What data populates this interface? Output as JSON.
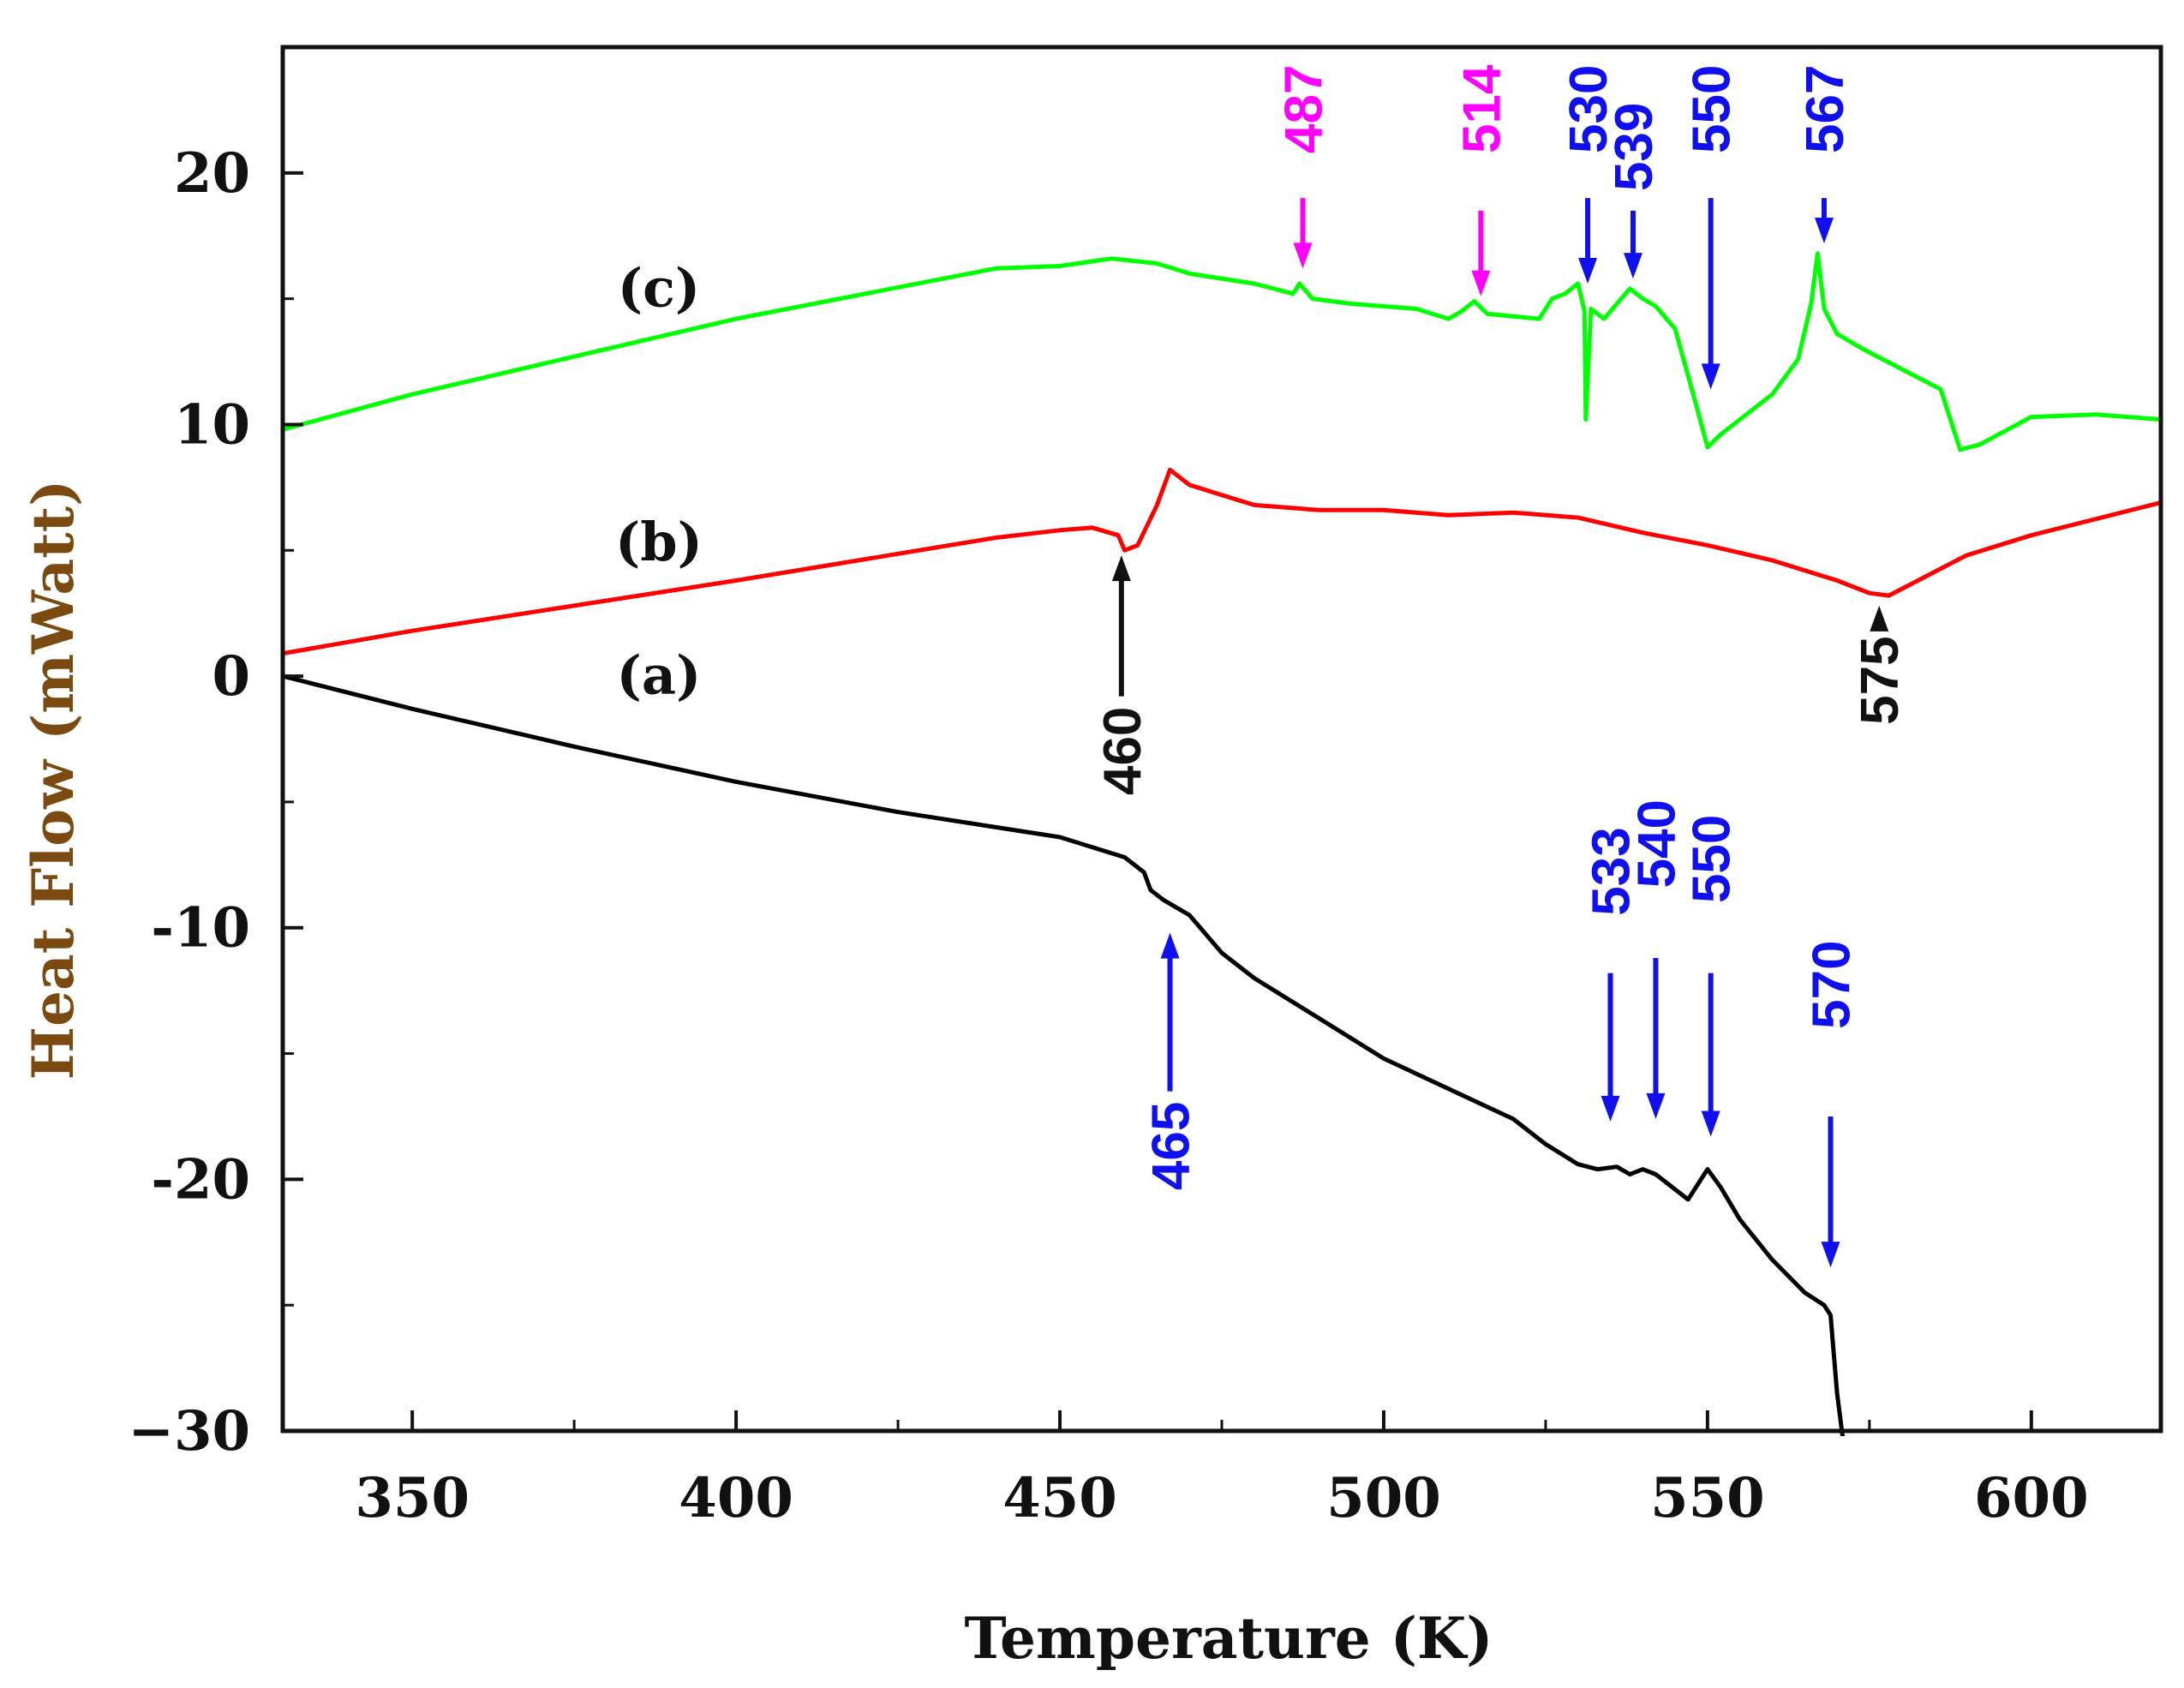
{
  "chart_data": {
    "type": "line",
    "title": "",
    "xlabel": "Temperature (K)",
    "ylabel": "Heat Flow (mWatt)",
    "xlim": [
      330,
      620
    ],
    "ylim": [
      -30,
      25
    ],
    "xticks": [
      350,
      400,
      450,
      500,
      550,
      600
    ],
    "xtick_labels": [
      "350",
      "400",
      "450",
      "500",
      "550",
      "600"
    ],
    "yticks": [
      -30,
      -20,
      -10,
      0,
      10,
      20
    ],
    "ytick_labels": [
      "−30",
      "-20",
      "-10",
      "0",
      "10",
      "20"
    ],
    "grid": false,
    "colors": {
      "a": "#000000",
      "b": "#ff0000",
      "c": "#00ff00",
      "blue": "#1010ee",
      "magenta": "#ff00ff",
      "black": "#111111",
      "ylabel": "#7a4a10"
    },
    "series": [
      {
        "name": "(a)",
        "key": "a",
        "x": [
          330,
          350,
          375,
          400,
          425,
          450,
          460,
          463,
          464,
          466,
          468,
          470,
          475,
          480,
          490,
          500,
          510,
          520,
          525,
          530,
          533,
          536,
          538,
          540,
          542,
          545,
          547,
          549,
          550,
          552,
          555,
          560,
          565,
          568,
          569,
          570,
          571
        ],
        "y": [
          0,
          -1.3,
          -2.8,
          -4.2,
          -5.4,
          -6.4,
          -7.2,
          -7.8,
          -8.5,
          -8.9,
          -9.2,
          -9.5,
          -11.0,
          -12.0,
          -13.6,
          -15.2,
          -16.4,
          -17.6,
          -18.6,
          -19.4,
          -19.6,
          -19.5,
          -19.8,
          -19.6,
          -19.8,
          -20.4,
          -20.8,
          -20.0,
          -19.6,
          -20.3,
          -21.6,
          -23.2,
          -24.5,
          -25.0,
          -25.4,
          -28.5,
          -30.5
        ],
        "label_pos": [
          355,
          -0.7
        ]
      },
      {
        "name": "(b)",
        "key": "b",
        "x": [
          330,
          350,
          400,
          440,
          450,
          455,
          459,
          460,
          462,
          465,
          467,
          468,
          470,
          475,
          480,
          490,
          500,
          510,
          520,
          530,
          540,
          550,
          560,
          570,
          575,
          578,
          590,
          600,
          620
        ],
        "y": [
          0.9,
          1.8,
          3.8,
          5.5,
          5.8,
          5.9,
          5.6,
          5.0,
          5.2,
          6.8,
          8.2,
          8.0,
          7.6,
          7.2,
          6.8,
          6.6,
          6.6,
          6.4,
          6.5,
          6.3,
          5.7,
          5.2,
          4.6,
          3.8,
          3.3,
          3.2,
          4.8,
          5.6,
          6.9
        ],
        "label_pos": [
          355,
          4.6
        ]
      },
      {
        "name": "(c)",
        "key": "c",
        "x": [
          330,
          350,
          400,
          440,
          450,
          458,
          465,
          470,
          480,
          486,
          487,
          489,
          495,
          505,
          510,
          512,
          514,
          516,
          520,
          524,
          526,
          528,
          530,
          531,
          531.2,
          532,
          534,
          536,
          538,
          540,
          542,
          545,
          548,
          550,
          552,
          556,
          560,
          564,
          566,
          567,
          568,
          570,
          574,
          580,
          586,
          589,
          592,
          600,
          610,
          620
        ],
        "y": [
          9.8,
          11.2,
          14.2,
          16.2,
          16.3,
          16.6,
          16.4,
          16.0,
          15.6,
          15.2,
          15.6,
          15.0,
          14.8,
          14.6,
          14.2,
          14.5,
          14.9,
          14.4,
          14.3,
          14.2,
          15.0,
          15.2,
          15.6,
          14.5,
          10.2,
          14.6,
          14.2,
          14.8,
          15.4,
          15.0,
          14.7,
          13.8,
          11.0,
          9.1,
          9.6,
          10.4,
          11.2,
          12.6,
          14.8,
          16.8,
          14.6,
          13.6,
          13.0,
          12.2,
          11.4,
          9.0,
          9.2,
          10.3,
          10.4,
          10.2
        ],
        "label_pos": [
          355,
          14.7
        ]
      }
    ],
    "annotations": [
      {
        "label": "487",
        "x": 487.5,
        "color_key": "magenta",
        "dir": "down",
        "y_arrow_tail": 19.0,
        "y_arrow_head": 16.2,
        "y_text": 24.3
      },
      {
        "label": "514",
        "x": 515,
        "color_key": "magenta",
        "dir": "down",
        "y_arrow_tail": 18.5,
        "y_arrow_head": 15.1,
        "y_text": 24.3
      },
      {
        "label": "530",
        "x": 531.5,
        "color_key": "blue",
        "dir": "down",
        "y_arrow_tail": 19.0,
        "y_arrow_head": 15.6,
        "y_text": 24.3
      },
      {
        "label": "539",
        "x": 538.5,
        "color_key": "blue",
        "dir": "down",
        "y_arrow_tail": 18.5,
        "y_arrow_head": 15.8,
        "y_text": 22.8
      },
      {
        "label": "550",
        "x": 550.5,
        "color_key": "blue",
        "dir": "down",
        "y_arrow_tail": 19.0,
        "y_arrow_head": 11.4,
        "y_text": 24.3
      },
      {
        "label": "567",
        "x": 568,
        "color_key": "blue",
        "dir": "down",
        "y_arrow_tail": 19.0,
        "y_arrow_head": 17.2,
        "y_text": 24.3
      },
      {
        "label": "460",
        "x": 459.5,
        "color_key": "black",
        "dir": "up",
        "y_arrow_tail": -0.8,
        "y_arrow_head": 4.8,
        "y_text": -0.2
      },
      {
        "label": "575",
        "x": 576.5,
        "color_key": "black",
        "dir": "up",
        "y_arrow_tail": 2.0,
        "y_arrow_head": 2.8,
        "y_text": 2.8
      },
      {
        "label": "465",
        "x": 467,
        "color_key": "blue",
        "dir": "up",
        "y_arrow_tail": -16.5,
        "y_arrow_head": -10.2,
        "y_text": -17.5
      },
      {
        "label": "533",
        "x": 535,
        "color_key": "blue",
        "dir": "down",
        "y_arrow_tail": -11.8,
        "y_arrow_head": -17.7,
        "y_text": -6.0
      },
      {
        "label": "540",
        "x": 542,
        "color_key": "blue",
        "dir": "down",
        "y_arrow_tail": -11.2,
        "y_arrow_head": -17.6,
        "y_text": -4.9
      },
      {
        "label": "550",
        "x": 550.5,
        "color_key": "blue",
        "dir": "down",
        "y_arrow_tail": -11.8,
        "y_arrow_head": -18.3,
        "y_text": -5.5
      },
      {
        "label": "570",
        "x": 569,
        "color_key": "blue",
        "dir": "down",
        "y_arrow_tail": -17.5,
        "y_arrow_head": -23.5,
        "y_text": -10.5
      }
    ]
  }
}
